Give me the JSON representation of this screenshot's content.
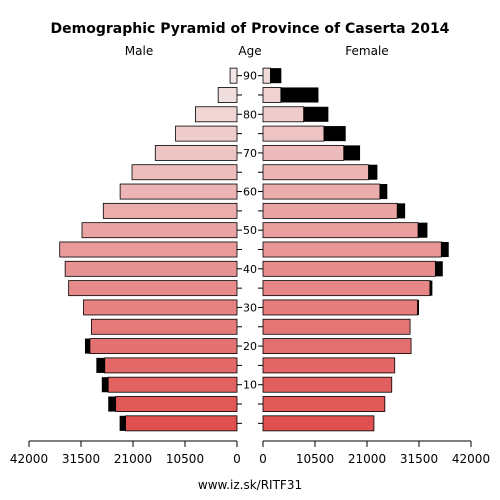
{
  "chart_data": {
    "type": "bar",
    "orientation": "horizontal-population-pyramid",
    "title": "Demographic Pyramid of Province of Caserta 2014",
    "left_label": "Male",
    "center_label": "Age",
    "right_label": "Female",
    "source": "www.iz.sk/RITF31",
    "xlim": [
      0,
      42000
    ],
    "x_ticks": [
      {
        "value": 42000,
        "label": "42000"
      },
      {
        "value": 31500,
        "label": "31500"
      },
      {
        "value": 21000,
        "label": "21000"
      },
      {
        "value": 10500,
        "label": "10500"
      },
      {
        "value": 0,
        "label": "0"
      }
    ],
    "age_groups": [
      "0-4",
      "5-9",
      "10-14",
      "15-19",
      "20-24",
      "25-29",
      "30-34",
      "35-39",
      "40-44",
      "45-49",
      "50-54",
      "55-59",
      "60-64",
      "65-69",
      "70-74",
      "75-79",
      "80-84",
      "85-89",
      "90+"
    ],
    "age_tick_labels": [
      {
        "group_index": 2,
        "label": "10"
      },
      {
        "group_index": 4,
        "label": "20"
      },
      {
        "group_index": 6,
        "label": "30"
      },
      {
        "group_index": 8,
        "label": "40"
      },
      {
        "group_index": 10,
        "label": "50"
      },
      {
        "group_index": 12,
        "label": "60"
      },
      {
        "group_index": 14,
        "label": "70"
      },
      {
        "group_index": 16,
        "label": "80"
      },
      {
        "group_index": 18,
        "label": "90"
      }
    ],
    "series": [
      {
        "side": "male",
        "component": "base",
        "values": [
          22500,
          24500,
          26000,
          26700,
          29700,
          29400,
          31000,
          34000,
          34700,
          35800,
          31300,
          27000,
          23600,
          21200,
          16500,
          12400,
          8400,
          3800,
          1400
        ]
      },
      {
        "side": "male",
        "component": "excess",
        "values": [
          1200,
          1500,
          1300,
          1700,
          1000,
          0,
          0,
          0,
          0,
          0,
          0,
          0,
          0,
          0,
          0,
          0,
          0,
          0,
          0
        ]
      },
      {
        "side": "female",
        "component": "base",
        "values": [
          22400,
          24600,
          26000,
          26600,
          29900,
          29700,
          31200,
          33700,
          34800,
          36000,
          31300,
          27100,
          23600,
          21300,
          16300,
          12300,
          8200,
          3600,
          1500
        ]
      },
      {
        "side": "female",
        "component": "excess",
        "values": [
          0,
          0,
          0,
          0,
          0,
          0,
          300,
          500,
          1500,
          1500,
          1900,
          1600,
          1500,
          1800,
          3300,
          4400,
          5000,
          7600,
          2200
        ]
      }
    ],
    "colors": {
      "young": "#e05050",
      "old": "#f2e6e6",
      "excess": "#000000",
      "outline": "#000000"
    }
  }
}
